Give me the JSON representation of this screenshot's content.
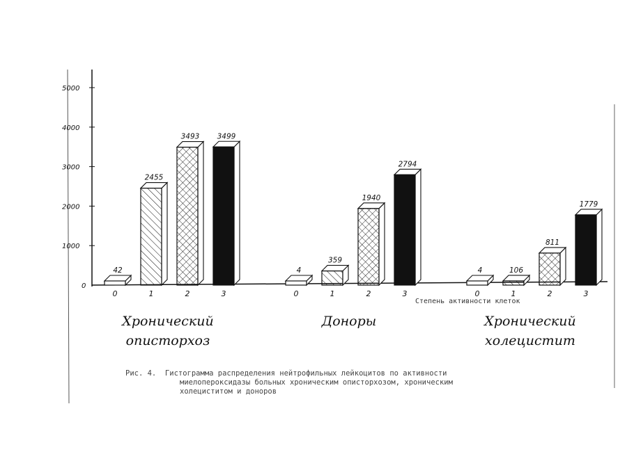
{
  "chart_data": {
    "type": "bar",
    "style": "3d-bar-histogram",
    "ylim": [
      0,
      5000
    ],
    "y_ticks": [
      "0",
      "1000",
      "2000",
      "3000",
      "4000",
      "5000"
    ],
    "xlabel": "Степень активности клеток",
    "ylabel": "",
    "categories": [
      "0",
      "1",
      "2",
      "3"
    ],
    "category_fills": [
      "blank",
      "hatched",
      "cross-hatched",
      "solid-black"
    ],
    "groups": [
      {
        "label_lines": [
          "Хронический",
          "описторхоз"
        ],
        "values": [
          42,
          2455,
          3493,
          3499
        ],
        "value_labels": [
          "42",
          "2455",
          "3493",
          "3499"
        ]
      },
      {
        "label_lines": [
          "Доноры"
        ],
        "values": [
          4,
          359,
          1940,
          2794
        ],
        "value_labels": [
          "4",
          "359",
          "1940",
          "2794"
        ]
      },
      {
        "label_lines": [
          "Хронический",
          "холецистит"
        ],
        "values": [
          4,
          106,
          811,
          1779
        ],
        "value_labels": [
          "4",
          "106",
          "811",
          "1779"
        ]
      }
    ],
    "grid": false
  },
  "caption": {
    "prefix": "Рис. 4.",
    "lines": [
      "Гистограмма распределения нейтрофильных лейкоцитов по активности",
      "миелопероксидазы больных хроническим описторхозом, хроническим",
      "холециститом и доноров"
    ]
  }
}
